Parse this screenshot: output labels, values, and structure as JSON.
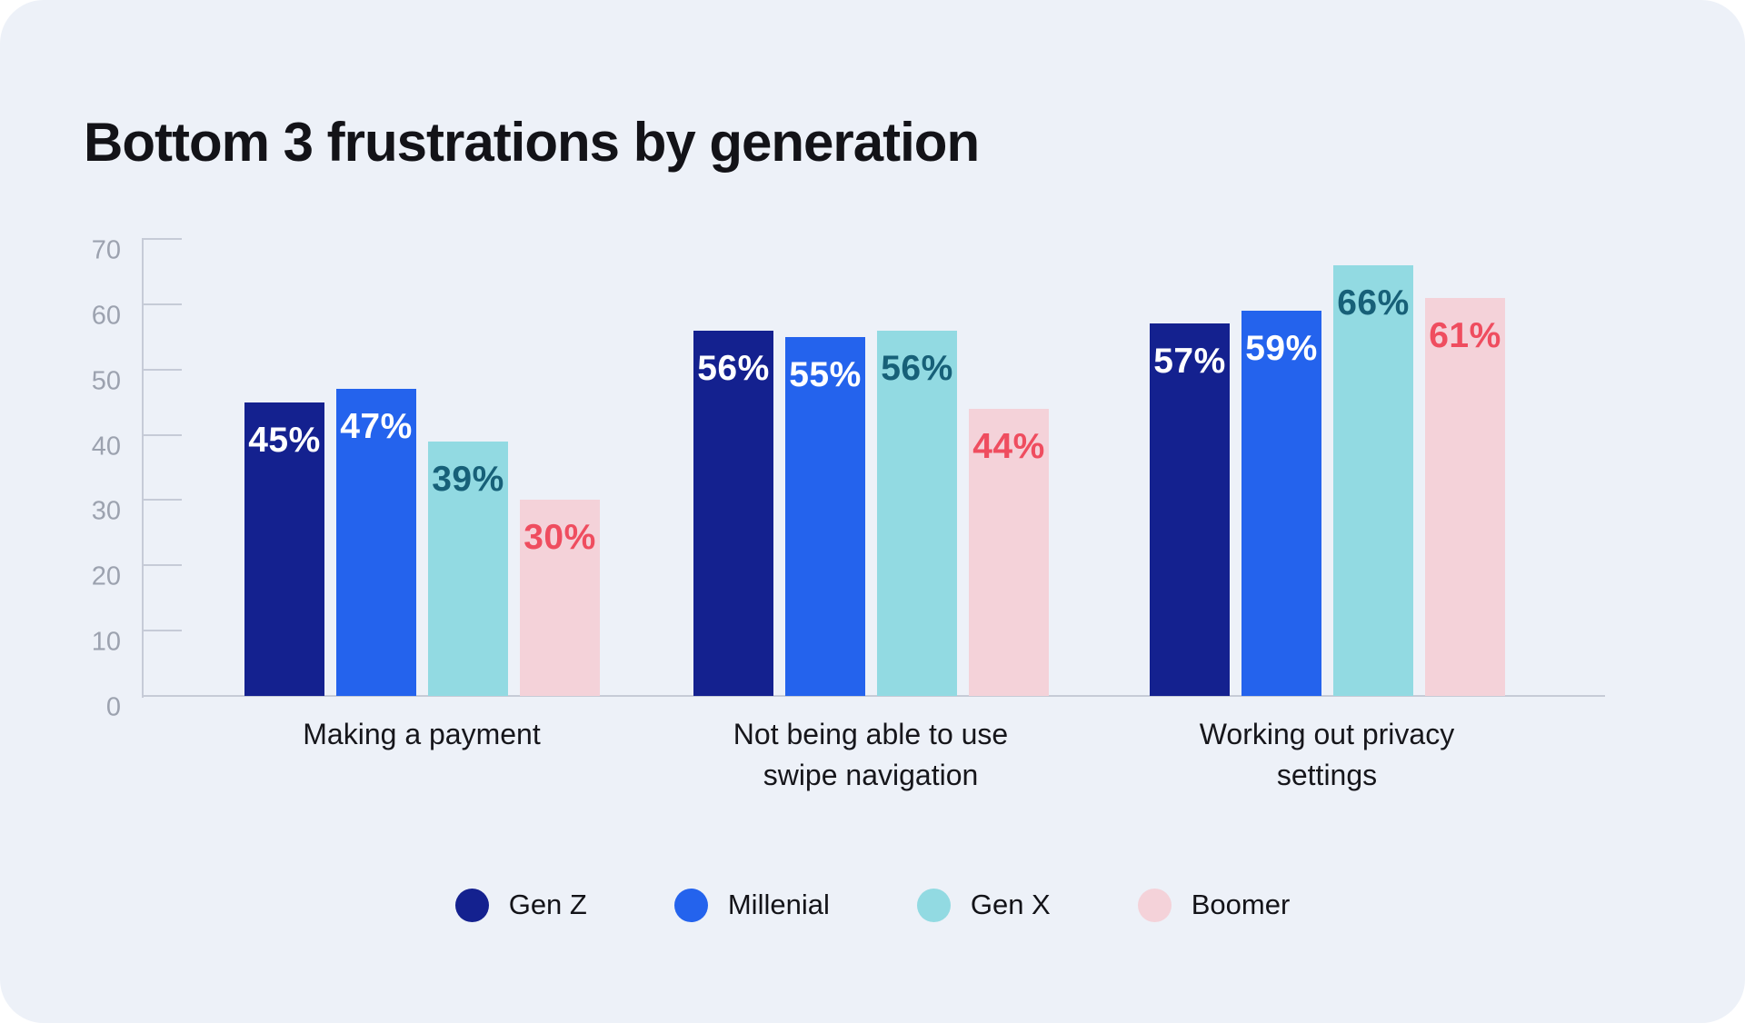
{
  "page": {
    "background_color": "#FFFFFF",
    "panel_color": "#EDF1F8"
  },
  "title": "Bottom 3 frustrations by generation",
  "chart_data": {
    "type": "bar",
    "title": "Bottom 3 frustrations by generation",
    "categories": [
      {
        "label": "Making a payment",
        "lines": [
          "Making a payment"
        ]
      },
      {
        "label": "Not being able to use swipe navigation",
        "lines": [
          "Not being able to use",
          "swipe navigation"
        ]
      },
      {
        "label": "Working out privacy settings",
        "lines": [
          "Working out privacy",
          "settings"
        ]
      }
    ],
    "series": [
      {
        "name": "Gen Z",
        "color": "#14218F",
        "label_color": "#FFFFFF",
        "values": [
          45,
          56,
          57
        ]
      },
      {
        "name": "Millenial",
        "color": "#2463ED",
        "label_color": "#FFFFFF",
        "values": [
          47,
          55,
          59
        ]
      },
      {
        "name": "Gen X",
        "color": "#92DAE2",
        "label_color": "#176078",
        "values": [
          39,
          56,
          66
        ]
      },
      {
        "name": "Boomer",
        "color": "#F4D2D9",
        "label_color": "#EF4D5F",
        "values": [
          30,
          44,
          61
        ]
      }
    ],
    "value_suffix": "%",
    "ylim": [
      0,
      70
    ],
    "yticks": [
      0,
      10,
      20,
      30,
      40,
      50,
      60,
      70
    ],
    "grid": false,
    "legend_position": "bottom",
    "axis_color": "#C6CBD7",
    "tick_label_color": "#9CA2AF"
  }
}
